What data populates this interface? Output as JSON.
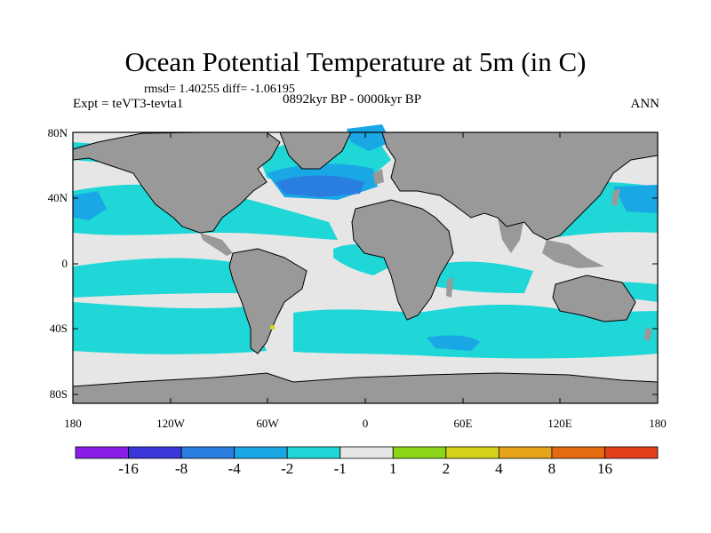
{
  "title": "Ocean Potential Temperature at 5m (in C)",
  "stats": "rmsd= 1.40255 diff= -1.06195",
  "experiment": "Expt = teVT3-tevta1",
  "period": "0892kyr BP - 0000kyr BP",
  "season": "ANN",
  "lat_labels": [
    "80N",
    "40N",
    "0",
    "40S",
    "80S"
  ],
  "lon_labels": [
    "180",
    "120W",
    "60W",
    "0",
    "60E",
    "120E",
    "180"
  ],
  "colorbar": {
    "colors": [
      "#8a1ee6",
      "#3a36d8",
      "#2a7ee0",
      "#1aa7e6",
      "#1ed7d6",
      "#e6e6e6",
      "#8cd61a",
      "#d6d21a",
      "#e6a41a",
      "#e66a12",
      "#e2401a"
    ],
    "labels": [
      "-16",
      "-8",
      "-4",
      "-2",
      "-1",
      "1",
      "2",
      "4",
      "8",
      "16"
    ]
  },
  "map_colors": {
    "land": "#999999",
    "ocean_cyan": "#1ed7d6",
    "ocean_grey": "#e6e6e6",
    "ocean_lightblue": "#1aa7e6",
    "ocean_blue": "#2a7ee0",
    "hotspot": "#d6d21a"
  }
}
